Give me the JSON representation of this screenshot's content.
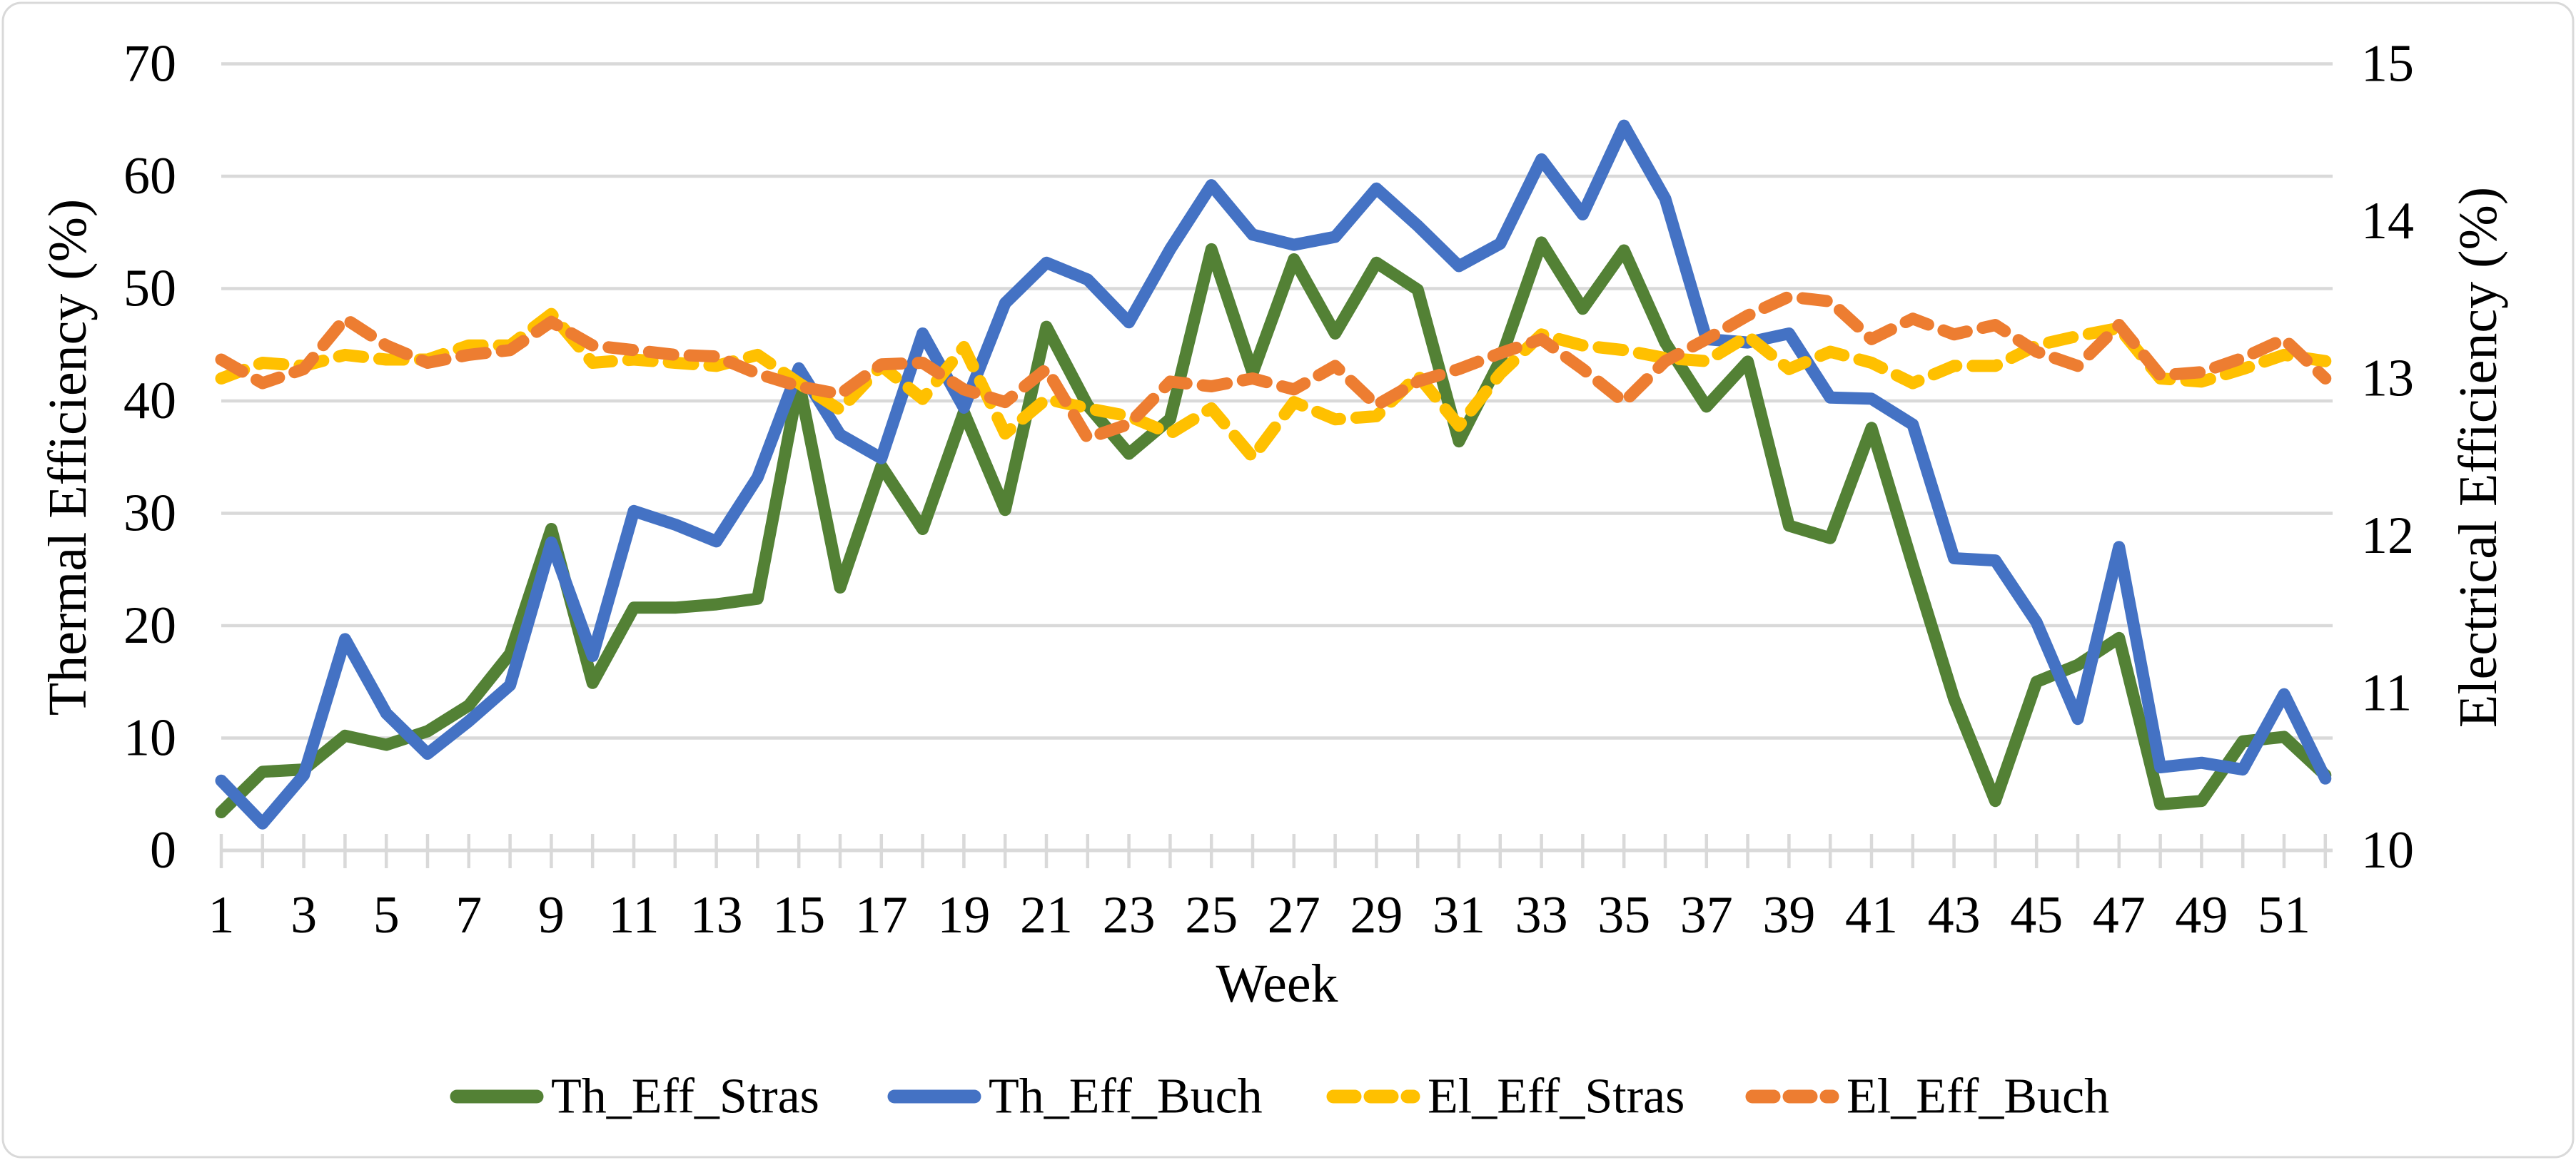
{
  "chart_data": {
    "type": "line",
    "title": "",
    "xlabel": "Week",
    "ylabel_left": "Thermal Efficiency (%)",
    "ylabel_right": "Electrical Efficiency (%)",
    "grid": "horizontal",
    "legend_position": "bottom",
    "background": "#FFFFFF",
    "gridline_color": "#D9D9D9",
    "axis_line_color": "#D9D9D9",
    "text_color": "#000000",
    "x": [
      1,
      2,
      3,
      4,
      5,
      6,
      7,
      8,
      9,
      10,
      11,
      12,
      13,
      14,
      15,
      16,
      17,
      18,
      19,
      20,
      21,
      22,
      23,
      24,
      25,
      26,
      27,
      28,
      29,
      30,
      31,
      32,
      33,
      34,
      35,
      36,
      37,
      38,
      39,
      40,
      41,
      42,
      43,
      44,
      45,
      46,
      47,
      48,
      49,
      50,
      51,
      52
    ],
    "x_tick_labels": [
      "1",
      "3",
      "5",
      "7",
      "9",
      "11",
      "13",
      "15",
      "17",
      "19",
      "21",
      "23",
      "25",
      "27",
      "29",
      "31",
      "33",
      "35",
      "37",
      "39",
      "41",
      "43",
      "45",
      "47",
      "49",
      "51"
    ],
    "left_axis": {
      "label": "Thermal Efficiency (%)",
      "min": 0,
      "max": 70,
      "ticks": [
        0,
        10,
        20,
        30,
        40,
        50,
        60,
        70
      ]
    },
    "right_axis": {
      "label": "Electrical Efficiency (%)",
      "min": 10,
      "max": 15,
      "ticks": [
        10,
        11,
        12,
        13,
        14,
        15
      ]
    },
    "series": [
      {
        "name": "Th_Eff_Stras",
        "axis": "left",
        "style": "solid",
        "color": "#538135",
        "values": [
          3.4,
          7.0,
          7.2,
          10.2,
          9.4,
          10.6,
          12.9,
          17.5,
          28.6,
          14.9,
          21.6,
          21.6,
          21.9,
          22.4,
          41.7,
          23.4,
          34.2,
          28.6,
          39.0,
          30.3,
          46.6,
          39.6,
          35.3,
          38.4,
          53.5,
          42.5,
          52.6,
          46.0,
          52.3,
          49.9,
          36.4,
          43.6,
          54.1,
          48.2,
          53.4,
          45.2,
          39.5,
          43.5,
          28.9,
          27.8,
          37.6,
          25.4,
          13.5,
          4.4,
          15.0,
          16.5,
          18.9,
          4.1,
          4.4,
          9.7,
          10.1,
          6.7
        ]
      },
      {
        "name": "Th_Eff_Buch",
        "axis": "left",
        "style": "solid",
        "color": "#4472C4",
        "values": [
          6.2,
          2.4,
          6.7,
          18.8,
          12.2,
          8.6,
          11.5,
          14.7,
          27.4,
          17.3,
          30.2,
          29.0,
          27.5,
          33.2,
          42.9,
          37.0,
          34.9,
          46.0,
          39.4,
          48.7,
          52.3,
          50.8,
          47.0,
          53.5,
          59.2,
          54.8,
          53.9,
          54.6,
          58.9,
          55.6,
          52.0,
          54.0,
          61.5,
          56.6,
          64.5,
          58.0,
          45.5,
          45.2,
          46.0,
          40.3,
          40.2,
          37.9,
          26.0,
          25.8,
          20.3,
          11.7,
          27.0,
          7.4,
          7.8,
          7.2,
          13.9,
          6.4
        ]
      },
      {
        "name": "El_Eff_Stras",
        "axis": "right",
        "style": "dashed",
        "color": "#FFC000",
        "values": [
          13.0,
          13.1,
          13.08,
          13.15,
          13.12,
          13.12,
          13.21,
          13.21,
          13.41,
          13.1,
          13.12,
          13.1,
          13.08,
          13.15,
          12.97,
          12.8,
          13.08,
          12.87,
          13.2,
          12.65,
          12.87,
          12.81,
          12.76,
          12.65,
          12.81,
          12.5,
          12.85,
          12.74,
          12.76,
          13.02,
          12.7,
          13.03,
          13.28,
          13.21,
          13.18,
          13.13,
          13.11,
          13.27,
          13.06,
          13.17,
          13.1,
          12.97,
          13.08,
          13.08,
          13.21,
          13.27,
          13.32,
          13.0,
          12.98,
          13.06,
          13.15,
          13.11
        ]
      },
      {
        "name": "El_Eff_Buch",
        "axis": "right",
        "style": "dashed",
        "color": "#ED7D31",
        "values": [
          13.12,
          12.97,
          13.06,
          13.38,
          13.21,
          13.1,
          13.15,
          13.18,
          13.36,
          13.21,
          13.18,
          13.15,
          13.14,
          13.03,
          12.95,
          12.9,
          13.09,
          13.1,
          12.93,
          12.85,
          13.06,
          12.62,
          12.71,
          12.98,
          12.95,
          13.0,
          12.93,
          13.08,
          12.83,
          12.98,
          13.06,
          13.16,
          13.25,
          13.06,
          12.85,
          13.11,
          13.25,
          13.4,
          13.52,
          13.49,
          13.25,
          13.38,
          13.28,
          13.34,
          13.17,
          13.08,
          13.34,
          13.02,
          13.04,
          13.13,
          13.25,
          13.0
        ]
      }
    ],
    "legend": {
      "items": [
        "Th_Eff_Stras",
        "Th_Eff_Buch",
        "El_Eff_Stras",
        "El_Eff_Buch"
      ]
    }
  }
}
